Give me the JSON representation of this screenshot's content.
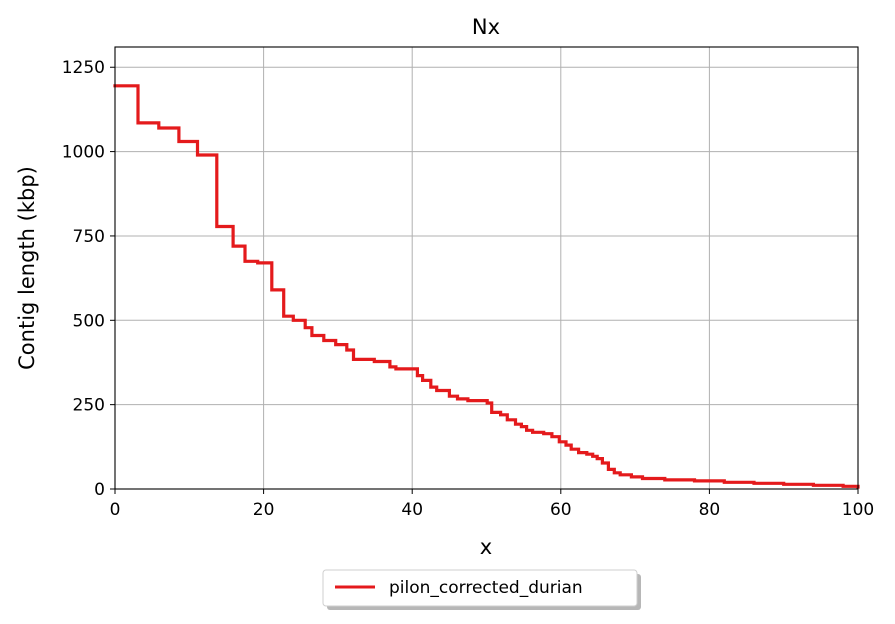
{
  "chart_data": {
    "type": "line",
    "title": "Nx",
    "xlabel": "x",
    "ylabel": "Contig length (kbp)",
    "xlim": [
      0,
      100
    ],
    "ylim": [
      0,
      1310
    ],
    "x_ticks": [
      0,
      20,
      40,
      60,
      80,
      100
    ],
    "y_ticks": [
      0,
      250,
      500,
      750,
      1000,
      1250
    ],
    "grid": true,
    "legend_position": "bottom-center",
    "series": [
      {
        "name": "pilon_corrected_durian",
        "color": "#e41a1c",
        "step": true,
        "x": [
          0,
          3.1,
          5.9,
          8.6,
          11.1,
          13.7,
          15.9,
          17.5,
          19.2,
          21.1,
          22.7,
          24.0,
          25.6,
          26.5,
          28.1,
          29.7,
          31.2,
          32.1,
          34.9,
          37.0,
          37.8,
          40.7,
          41.4,
          42.5,
          43.3,
          45.0,
          46.1,
          47.5,
          50.1,
          50.7,
          51.9,
          52.8,
          53.9,
          54.7,
          55.4,
          56.2,
          57.7,
          58.8,
          59.8,
          60.7,
          61.4,
          62.4,
          63.5,
          64.3,
          64.9,
          65.6,
          66.4,
          67.2,
          68.0,
          69.5,
          71.0,
          74.0,
          78.0,
          82.0,
          86.0,
          90.0,
          94.0,
          98.0,
          100.0
        ],
        "y": [
          1195,
          1085,
          1070,
          1030,
          990,
          778,
          720,
          675,
          670,
          590,
          512,
          500,
          478,
          455,
          440,
          428,
          412,
          384,
          378,
          362,
          356,
          336,
          322,
          302,
          292,
          275,
          267,
          262,
          255,
          227,
          220,
          205,
          192,
          185,
          174,
          168,
          164,
          155,
          140,
          130,
          118,
          108,
          103,
          97,
          90,
          77,
          58,
          48,
          42,
          36,
          31,
          27,
          24,
          20,
          17,
          14,
          11,
          8,
          6
        ]
      }
    ]
  }
}
